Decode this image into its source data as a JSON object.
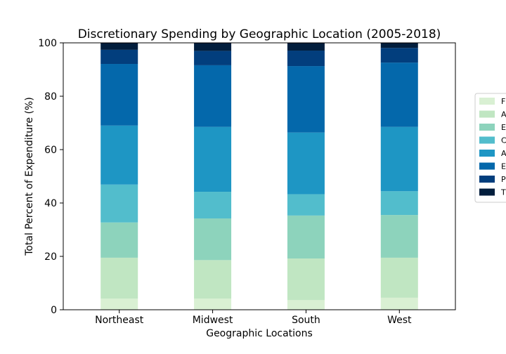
{
  "chart_data": {
    "type": "bar",
    "stacked": true,
    "title": "Discretionary Spending by Geographic Location (2005-2018)",
    "xlabel": "Geographic Locations",
    "ylabel": "Total Percent of Expenditure (%)",
    "ylim": [
      0,
      100
    ],
    "yticks": [
      0,
      20,
      40,
      60,
      80,
      100
    ],
    "grid": false,
    "legend_position": "right",
    "categories": [
      "Northeast",
      "Midwest",
      "South",
      "West"
    ],
    "series": [
      {
        "name": "F",
        "color": "#d9f0d3",
        "values": [
          4.2,
          4.2,
          3.6,
          4.5
        ]
      },
      {
        "name": "A",
        "color": "#c0e6c2",
        "values": [
          15.3,
          14.4,
          15.6,
          15.0
        ]
      },
      {
        "name": "E",
        "color": "#8dd3bc",
        "values": [
          13.2,
          15.6,
          16.1,
          16.0
        ]
      },
      {
        "name": "C",
        "color": "#52bdcc",
        "values": [
          14.2,
          10.0,
          8.0,
          8.9
        ]
      },
      {
        "name": "A",
        "color": "#1e96c4",
        "values": [
          22.1,
          24.3,
          23.1,
          24.1
        ]
      },
      {
        "name": "E",
        "color": "#0468ab",
        "values": [
          23.1,
          23.1,
          24.9,
          24.1
        ]
      },
      {
        "name": "P",
        "color": "#023e7d",
        "values": [
          5.3,
          5.4,
          5.8,
          5.5
        ]
      },
      {
        "name": "T",
        "color": "#021e3d",
        "values": [
          2.6,
          3.0,
          2.9,
          1.9
        ]
      }
    ]
  }
}
